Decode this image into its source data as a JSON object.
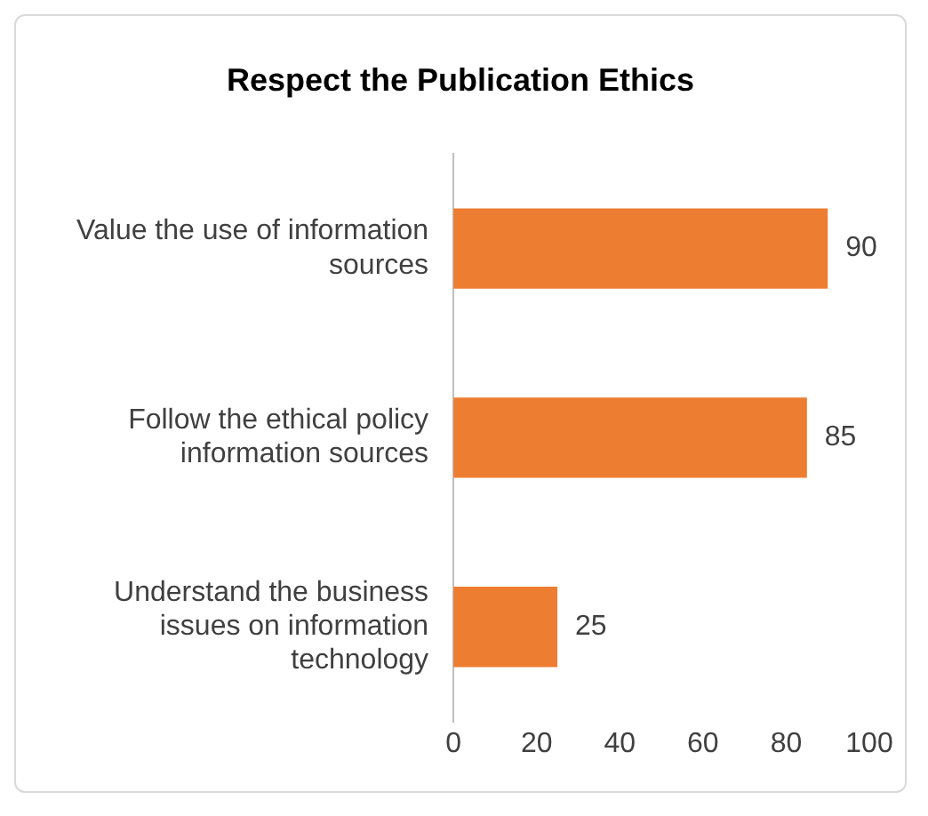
{
  "chart_data": {
    "type": "bar",
    "orientation": "horizontal",
    "title": "Respect the Publication Ethics",
    "categories": [
      "Value the use of information sources",
      "Follow the ethical policy information sources",
      "Understand the business issues on information technology"
    ],
    "values": [
      90,
      85,
      25
    ],
    "color": "#ed7d31",
    "xlim": [
      0,
      100
    ],
    "xticks": [
      0,
      20,
      40,
      60,
      80,
      100
    ],
    "grid": false,
    "data_labels": true
  }
}
